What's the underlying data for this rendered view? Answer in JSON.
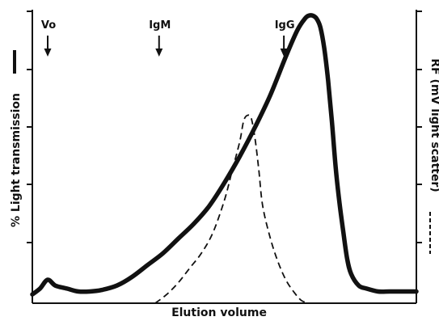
{
  "chart_data": {
    "type": "line",
    "title": "",
    "xlabel": "Elution volume",
    "ylabel_left": "% Light transmission",
    "ylabel_right": "RF (mV light scatter)",
    "xlim": [
      0,
      100
    ],
    "ylim_left": [
      0,
      100
    ],
    "ylim_right": [
      0,
      100
    ],
    "grid": false,
    "annotations": [
      {
        "label": "Vo",
        "x": 4
      },
      {
        "label": "IgM",
        "x": 33
      },
      {
        "label": "IgG",
        "x": 65.5
      }
    ],
    "series": [
      {
        "name": "% Light transmission",
        "axis": "left",
        "style": "solid",
        "x": [
          0,
          2,
          4,
          6,
          9,
          12,
          15,
          18,
          22,
          26,
          30,
          34,
          38,
          42,
          46,
          50,
          54,
          58,
          62,
          66,
          69,
          71,
          72,
          73,
          74,
          75,
          76,
          77,
          78,
          79,
          80,
          81,
          82,
          83,
          85,
          87,
          90,
          93,
          96,
          100
        ],
        "y": [
          3,
          5,
          8,
          6,
          5,
          4,
          4,
          4.5,
          6,
          9,
          13,
          17,
          22,
          27,
          33,
          41,
          50,
          60,
          71,
          84,
          93,
          97,
          98,
          98,
          97,
          94,
          87,
          76,
          62,
          46,
          34,
          24,
          15,
          10,
          6,
          5,
          4,
          4,
          4,
          4
        ]
      },
      {
        "name": "RF",
        "axis": "right",
        "style": "dashed",
        "x": [
          32,
          35,
          38,
          41,
          44,
          47,
          50,
          52,
          54,
          55,
          56,
          57,
          58,
          59,
          60,
          62,
          64,
          66,
          68,
          70,
          72
        ],
        "y": [
          0,
          3,
          7,
          12,
          17,
          24,
          35,
          45,
          55,
          62,
          64,
          63,
          56,
          45,
          33,
          22,
          14,
          8,
          4,
          1,
          0
        ]
      }
    ]
  }
}
